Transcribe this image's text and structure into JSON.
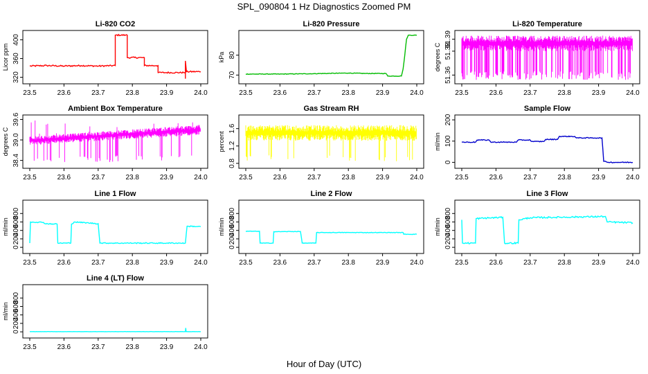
{
  "figure": {
    "title": "SPL_090804  1 Hz Diagnostics Zoomed PM",
    "xlabel": "Hour of Day (UTC)"
  },
  "colors": {
    "red": "#ff0000",
    "green": "#00bb00",
    "magenta": "#ff00ff",
    "yellow": "#ffff00",
    "blue": "#0000cc",
    "cyan": "#00ffff",
    "axis": "#000000"
  },
  "chart_data": [
    {
      "type": "line",
      "title": "Li-820 CO2",
      "ylabel": "Licor ppm",
      "color": "red",
      "xlim": [
        23.5,
        24.0
      ],
      "xticks": [
        "23.5",
        "23.6",
        "23.7",
        "23.8",
        "23.9",
        "24.0"
      ],
      "ylim": [
        312,
        414
      ],
      "yticks": [
        320,
        360,
        400
      ],
      "segments": [
        [
          23.5,
          344
        ],
        [
          23.55,
          345
        ],
        [
          23.6,
          344
        ],
        [
          23.65,
          345
        ],
        [
          23.7,
          344
        ],
        [
          23.75,
          345
        ],
        [
          23.75,
          410
        ],
        [
          23.78,
          410
        ],
        [
          23.785,
          410
        ],
        [
          23.785,
          362
        ],
        [
          23.83,
          362
        ],
        [
          23.835,
          362
        ],
        [
          23.835,
          345
        ],
        [
          23.87,
          345
        ],
        [
          23.875,
          345
        ],
        [
          23.875,
          330
        ],
        [
          23.9,
          330
        ],
        [
          23.95,
          330
        ],
        [
          23.955,
          330
        ],
        [
          23.955,
          317
        ],
        [
          23.955,
          355
        ],
        [
          23.958,
          332
        ],
        [
          24.0,
          332
        ]
      ],
      "noise": 1.5
    },
    {
      "type": "line",
      "title": "Li-820 Pressure",
      "ylabel": "kPa",
      "color": "green",
      "xlim": [
        23.5,
        24.0
      ],
      "xticks": [
        "23.5",
        "23.6",
        "23.7",
        "23.8",
        "23.9",
        "24.0"
      ],
      "ylim": [
        67,
        91
      ],
      "yticks": [
        70,
        80
      ],
      "segments": [
        [
          23.5,
          70.5
        ],
        [
          23.6,
          70.5
        ],
        [
          23.7,
          70.7
        ],
        [
          23.8,
          71
        ],
        [
          23.85,
          70.8
        ],
        [
          23.91,
          70.8
        ],
        [
          23.915,
          69.5
        ],
        [
          23.955,
          69.5
        ],
        [
          23.96,
          73
        ],
        [
          23.965,
          80
        ],
        [
          23.97,
          88
        ],
        [
          23.975,
          90
        ],
        [
          24.0,
          90
        ]
      ],
      "noise": 0.15
    },
    {
      "type": "noise-band",
      "title": "Li-820 Temperature",
      "ylabel": "degrees C",
      "color": "magenta",
      "xlim": [
        23.5,
        24.0
      ],
      "xticks": [
        "23.5",
        "23.6",
        "23.7",
        "23.8",
        "23.9",
        "24.0"
      ],
      "ylim": [
        51.355,
        51.395
      ],
      "yticks": [
        "51.36",
        "51.38",
        "51.39"
      ],
      "band": [
        51.38,
        51.393
      ],
      "spike_min": 51.356,
      "spike_prob": 0.35
    },
    {
      "type": "noise-band",
      "title": "Ambient Box Temperature",
      "ylabel": "degrees C",
      "color": "magenta",
      "xlim": [
        23.5,
        24.0
      ],
      "xticks": [
        "23.5",
        "23.6",
        "23.7",
        "23.8",
        "23.9",
        "24.0"
      ],
      "ylim": [
        38.25,
        39.65
      ],
      "yticks": [
        "38.4",
        "39.0",
        "39.6"
      ],
      "band_start": [
        38.85,
        39.1
      ],
      "band_end": [
        39.15,
        39.45
      ],
      "spike_min": 38.35,
      "spike_max": 39.6,
      "spike_prob": 0.12
    },
    {
      "type": "noise-band",
      "title": "Gas Stream RH",
      "ylabel": "percent",
      "color": "yellow",
      "xlim": [
        23.5,
        24.0
      ],
      "xticks": [
        "23.5",
        "23.6",
        "23.7",
        "23.8",
        "23.9",
        "24.0"
      ],
      "ylim": [
        0.75,
        1.85
      ],
      "yticks": [
        "0.8",
        "1.2",
        "1.6"
      ],
      "band": [
        1.32,
        1.68
      ],
      "spike_min": 0.85,
      "spike_prob": 0.06
    },
    {
      "type": "line",
      "title": "Sample Flow",
      "ylabel": "ml/min",
      "color": "blue",
      "xlim": [
        23.5,
        24.0
      ],
      "xticks": [
        "23.5",
        "23.6",
        "23.7",
        "23.8",
        "23.9",
        "24.0"
      ],
      "ylim": [
        -15,
        210
      ],
      "yticks": [
        0,
        100,
        200
      ],
      "segments": [
        [
          23.5,
          95
        ],
        [
          23.54,
          95
        ],
        [
          23.545,
          105
        ],
        [
          23.58,
          105
        ],
        [
          23.585,
          95
        ],
        [
          23.62,
          95
        ],
        [
          23.625,
          95
        ],
        [
          23.66,
          95
        ],
        [
          23.665,
          105
        ],
        [
          23.7,
          105
        ],
        [
          23.705,
          98
        ],
        [
          23.74,
          98
        ],
        [
          23.745,
          108
        ],
        [
          23.78,
          108
        ],
        [
          23.785,
          122
        ],
        [
          23.83,
          122
        ],
        [
          23.835,
          115
        ],
        [
          23.91,
          115
        ],
        [
          23.915,
          5
        ],
        [
          23.93,
          0
        ],
        [
          24.0,
          0
        ]
      ],
      "noise": 2
    },
    {
      "type": "line",
      "title": "Line 1 Flow",
      "ylabel": "ml/min",
      "color": "cyan",
      "xlim": [
        23.5,
        24.0
      ],
      "xticks": [
        "23.5",
        "23.6",
        "23.7",
        "23.8",
        "23.9",
        "24.0"
      ],
      "ylim": [
        -80,
        1050
      ],
      "yticks": [
        0,
        200,
        400,
        600,
        800
      ],
      "segments": [
        [
          23.5,
          100
        ],
        [
          23.502,
          600
        ],
        [
          23.54,
          590
        ],
        [
          23.545,
          560
        ],
        [
          23.58,
          550
        ],
        [
          23.582,
          100
        ],
        [
          23.62,
          100
        ],
        [
          23.622,
          550
        ],
        [
          23.63,
          600
        ],
        [
          23.7,
          560
        ],
        [
          23.705,
          100
        ],
        [
          23.9,
          100
        ],
        [
          23.955,
          100
        ],
        [
          23.96,
          500
        ],
        [
          24.0,
          490
        ]
      ],
      "noise": 12
    },
    {
      "type": "line",
      "title": "Line 2 Flow",
      "ylabel": "ml/min",
      "color": "cyan",
      "xlim": [
        23.5,
        24.0
      ],
      "xticks": [
        "23.5",
        "23.6",
        "23.7",
        "23.8",
        "23.9",
        "24.0"
      ],
      "ylim": [
        -80,
        1050
      ],
      "yticks": [
        0,
        200,
        400,
        600,
        800
      ],
      "segments": [
        [
          23.5,
          380
        ],
        [
          23.54,
          380
        ],
        [
          23.542,
          100
        ],
        [
          23.58,
          100
        ],
        [
          23.582,
          370
        ],
        [
          23.66,
          375
        ],
        [
          23.665,
          100
        ],
        [
          23.705,
          100
        ],
        [
          23.707,
          350
        ],
        [
          23.96,
          350
        ],
        [
          23.962,
          310
        ],
        [
          24.0,
          310
        ]
      ],
      "noise": 6
    },
    {
      "type": "line",
      "title": "Line 3 Flow",
      "ylabel": "ml/min",
      "color": "cyan",
      "xlim": [
        23.5,
        24.0
      ],
      "xticks": [
        "23.5",
        "23.6",
        "23.7",
        "23.8",
        "23.9",
        "24.0"
      ],
      "ylim": [
        -80,
        1050
      ],
      "yticks": [
        0,
        200,
        400,
        600,
        800
      ],
      "segments": [
        [
          23.5,
          650
        ],
        [
          23.502,
          100
        ],
        [
          23.54,
          100
        ],
        [
          23.542,
          680
        ],
        [
          23.62,
          710
        ],
        [
          23.625,
          100
        ],
        [
          23.665,
          100
        ],
        [
          23.667,
          650
        ],
        [
          23.7,
          700
        ],
        [
          23.92,
          730
        ],
        [
          23.925,
          600
        ],
        [
          24.0,
          580
        ]
      ],
      "noise": 18
    },
    {
      "type": "line",
      "title": "Line 4 (LT) Flow",
      "ylabel": "ml/min",
      "color": "cyan",
      "xlim": [
        23.5,
        24.0
      ],
      "xticks": [
        "23.5",
        "23.6",
        "23.7",
        "23.8",
        "23.9",
        "24.0"
      ],
      "ylim": [
        -80,
        1050
      ],
      "yticks": [
        0,
        200,
        400,
        600,
        800
      ],
      "segments": [
        [
          23.5,
          5
        ],
        [
          23.955,
          5
        ],
        [
          23.956,
          90
        ],
        [
          23.957,
          5
        ],
        [
          24.0,
          5
        ]
      ],
      "noise": 2
    }
  ]
}
